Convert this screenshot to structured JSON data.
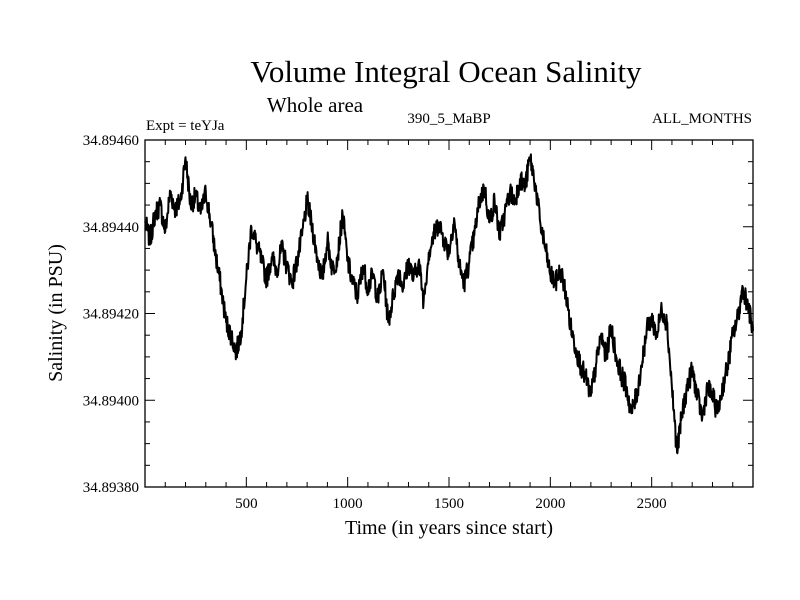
{
  "chart_data": {
    "type": "line",
    "title": "Volume Integral Ocean Salinity",
    "subtitle": "Whole area",
    "annotations": {
      "left": "Expt = teYJa",
      "center": "390_5_MaBP",
      "right": "ALL_MONTHS"
    },
    "xlabel": "Time (in years since start)",
    "ylabel": "Salinity (in PSU)",
    "xlim": [
      0,
      3000
    ],
    "ylim": [
      34.8938,
      34.8946
    ],
    "x_ticks": [
      500,
      1000,
      1500,
      2000,
      2500
    ],
    "x_tick_labels": [
      "500",
      "1000",
      "1500",
      "2000",
      "2500"
    ],
    "y_ticks": [
      34.8938,
      34.894,
      34.8942,
      34.8944,
      34.8946
    ],
    "y_tick_labels": [
      "34.89380",
      "34.89400",
      "34.89420",
      "34.89440",
      "34.89460"
    ],
    "grid": false,
    "series": [
      {
        "name": "salinity",
        "color": "#000000",
        "x": [
          0,
          25,
          50,
          75,
          100,
          125,
          150,
          175,
          200,
          225,
          250,
          275,
          300,
          325,
          350,
          375,
          400,
          425,
          450,
          475,
          500,
          525,
          550,
          575,
          600,
          625,
          650,
          675,
          700,
          725,
          750,
          775,
          800,
          825,
          850,
          875,
          900,
          925,
          950,
          975,
          1000,
          1025,
          1050,
          1075,
          1100,
          1125,
          1150,
          1175,
          1200,
          1225,
          1250,
          1275,
          1300,
          1325,
          1350,
          1375,
          1400,
          1425,
          1450,
          1475,
          1500,
          1525,
          1550,
          1575,
          1600,
          1625,
          1650,
          1675,
          1700,
          1725,
          1750,
          1775,
          1800,
          1825,
          1850,
          1875,
          1900,
          1925,
          1950,
          1975,
          2000,
          2025,
          2050,
          2075,
          2100,
          2125,
          2150,
          2175,
          2200,
          2225,
          2250,
          2275,
          2300,
          2325,
          2350,
          2375,
          2400,
          2425,
          2450,
          2475,
          2500,
          2525,
          2550,
          2575,
          2600,
          2625,
          2650,
          2675,
          2700,
          2725,
          2750,
          2775,
          2800,
          2825,
          2850,
          2875,
          2900,
          2925,
          2950,
          2975,
          3000
        ],
        "values": [
          34.89441,
          34.89437,
          34.89443,
          34.89445,
          34.89439,
          34.89448,
          34.89444,
          34.89446,
          34.89456,
          34.89445,
          34.89447,
          34.89443,
          34.89448,
          34.89441,
          34.89433,
          34.89426,
          34.89418,
          34.89415,
          34.89411,
          34.89416,
          34.89428,
          34.8944,
          34.89436,
          34.89432,
          34.89428,
          34.89433,
          34.8943,
          34.89435,
          34.89431,
          34.89427,
          34.89432,
          34.89438,
          34.89446,
          34.8944,
          34.89433,
          34.89428,
          34.89437,
          34.8943,
          34.89433,
          34.89443,
          34.89432,
          34.89427,
          34.89424,
          34.89431,
          34.89426,
          34.89429,
          34.89423,
          34.8943,
          34.89418,
          34.89424,
          34.8943,
          34.89426,
          34.89432,
          34.89428,
          34.89432,
          34.89423,
          34.89434,
          34.89438,
          34.89441,
          34.89437,
          34.89434,
          34.89442,
          34.89431,
          34.89427,
          34.89432,
          34.89438,
          34.89446,
          34.89449,
          34.89441,
          34.89446,
          34.89438,
          34.89443,
          34.89448,
          34.89446,
          34.89451,
          34.89449,
          34.89456,
          34.8945,
          34.89441,
          34.89435,
          34.89429,
          34.89427,
          34.8943,
          34.89425,
          34.89417,
          34.89412,
          34.89408,
          34.89405,
          34.89401,
          34.89408,
          34.89415,
          34.8941,
          34.89417,
          34.8941,
          34.89406,
          34.89403,
          34.89397,
          34.89401,
          34.89408,
          34.89416,
          34.89419,
          34.89415,
          34.89421,
          34.89418,
          34.89403,
          34.89388,
          34.89397,
          34.89403,
          34.89407,
          34.89401,
          34.89396,
          34.89403,
          34.89401,
          34.89397,
          34.89403,
          34.89408,
          34.89415,
          34.89419,
          34.89426,
          34.89422,
          34.89416
        ]
      }
    ]
  }
}
